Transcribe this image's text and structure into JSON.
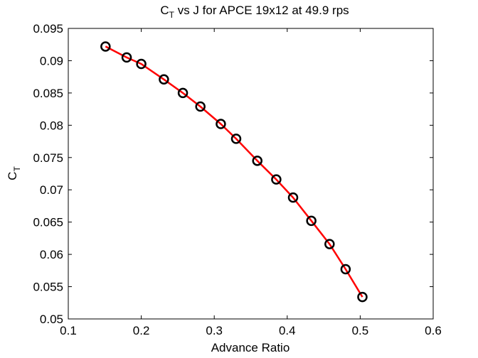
{
  "chart_data": {
    "type": "line",
    "title": {
      "prefix": "C",
      "subscript": "T",
      "rest": " vs J for APCE 19x12 at 49.9 rps"
    },
    "xlabel": "Advance Ratio",
    "ylabel": {
      "prefix": "C",
      "subscript": "T"
    },
    "xlim": [
      0.1,
      0.6
    ],
    "ylim": [
      0.05,
      0.095
    ],
    "xticks": [
      "0.1",
      "0.2",
      "0.3",
      "0.4",
      "0.5",
      "0.6"
    ],
    "yticks": [
      "0.05",
      "0.055",
      "0.06",
      "0.065",
      "0.07",
      "0.075",
      "0.08",
      "0.085",
      "0.09",
      "0.095"
    ],
    "grid": false,
    "series": [
      {
        "x": [
          0.151,
          0.18,
          0.2,
          0.231,
          0.257,
          0.281,
          0.309,
          0.33,
          0.359,
          0.385,
          0.408,
          0.433,
          0.458,
          0.48,
          0.503
        ],
        "y": [
          0.0922,
          0.0905,
          0.0895,
          0.0871,
          0.085,
          0.0829,
          0.0802,
          0.0779,
          0.0745,
          0.0716,
          0.0688,
          0.0652,
          0.0616,
          0.0577,
          0.0534
        ],
        "marker": "circle",
        "marker_color": "#000000",
        "line_color": "#ff0000"
      }
    ]
  }
}
